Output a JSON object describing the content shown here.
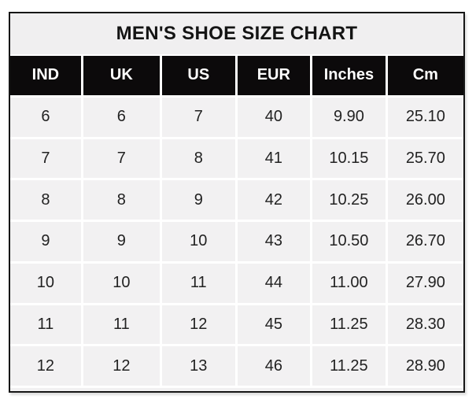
{
  "title": "MEN'S SHOE SIZE CHART",
  "chart_data": {
    "type": "table",
    "title": "MEN'S SHOE SIZE CHART",
    "columns": [
      "IND",
      "UK",
      "US",
      "EUR",
      "Inches",
      "Cm"
    ],
    "rows": [
      [
        "6",
        "6",
        "7",
        "40",
        "9.90",
        "25.10"
      ],
      [
        "7",
        "7",
        "8",
        "41",
        "10.15",
        "25.70"
      ],
      [
        "8",
        "8",
        "9",
        "42",
        "10.25",
        "26.00"
      ],
      [
        "9",
        "9",
        "10",
        "43",
        "10.50",
        "26.70"
      ],
      [
        "10",
        "10",
        "11",
        "44",
        "11.00",
        "27.90"
      ],
      [
        "11",
        "11",
        "12",
        "45",
        "11.25",
        "28.30"
      ],
      [
        "12",
        "12",
        "13",
        "46",
        "11.25",
        "28.90"
      ]
    ]
  },
  "colors": {
    "title_bg": "#f0eff0",
    "header_bg": "#0c0a0b",
    "header_text": "#ffffff",
    "cell_bg": "#f2f1f2",
    "gridline": "#ffffff",
    "border": "#161616",
    "text": "#222222"
  }
}
